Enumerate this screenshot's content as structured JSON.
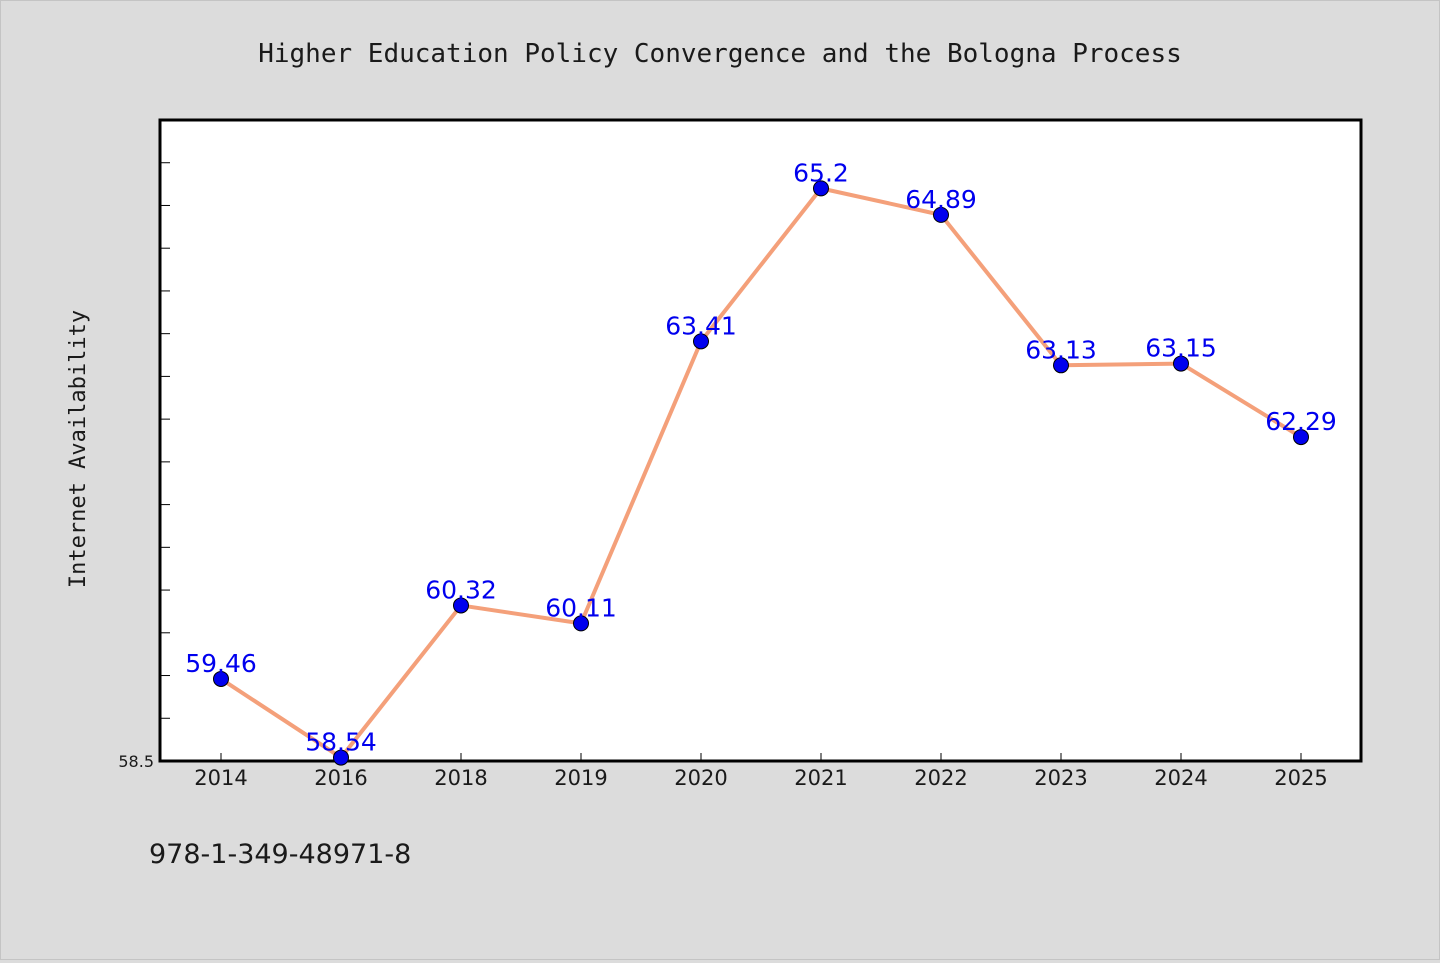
{
  "chart_data": {
    "type": "line",
    "title": "Higher Education Policy Convergence and the Bologna Process",
    "ylabel": "Internet Availability",
    "xlabel": "",
    "categories": [
      "2014",
      "2016",
      "2018",
      "2019",
      "2020",
      "2021",
      "2022",
      "2023",
      "2024",
      "2025"
    ],
    "series": [
      {
        "values": [
          59.46,
          58.54,
          60.32,
          60.11,
          63.41,
          65.2,
          64.89,
          63.13,
          63.15,
          62.29
        ],
        "value_labels": [
          "59.46",
          "58.54",
          "60.32",
          "60.11",
          "63.41",
          "65.2",
          "64.89",
          "63.13",
          "63.15",
          "62.29"
        ]
      }
    ],
    "ylim": [
      58.5,
      66.0
    ],
    "y_tick_label": "58.5",
    "grid": false,
    "line_color": "#f4a07a",
    "marker_color": "#0000ee",
    "label_color": "#0000ee",
    "footer_text": "978-1-349-48971-8"
  }
}
